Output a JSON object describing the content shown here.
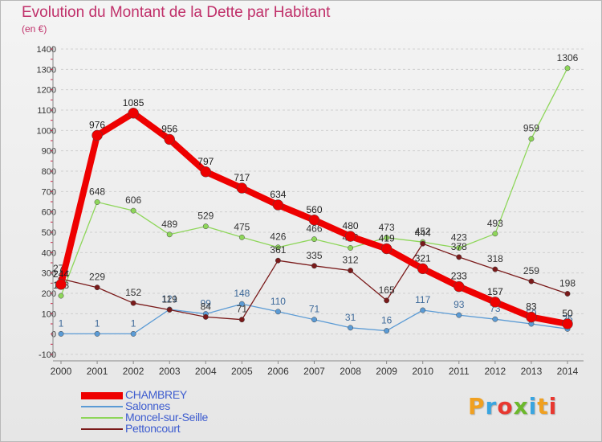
{
  "title": "Evolution du Montant de la Dette par Habitant",
  "unit_label": "(en €)",
  "brand": {
    "text": "Proxiti",
    "colors": [
      "#f0a020",
      "#3aa5e0",
      "#e83830",
      "#6cb82c",
      "#3aa5e0",
      "#f0a020",
      "#e83830"
    ]
  },
  "chart_data": {
    "type": "line",
    "title": "Evolution du Montant de la Dette par Habitant",
    "ylabel": "(en €)",
    "xlabel": "",
    "x": [
      2000,
      2001,
      2002,
      2003,
      2004,
      2005,
      2006,
      2007,
      2008,
      2009,
      2010,
      2011,
      2012,
      2013,
      2014
    ],
    "ylim": [
      -100,
      1400
    ],
    "yticks": [
      -100,
      0,
      100,
      200,
      300,
      400,
      500,
      600,
      700,
      800,
      900,
      1000,
      1100,
      1200,
      1300,
      1400
    ],
    "grid": "horizontal",
    "legend_position": "bottom-left",
    "series": [
      {
        "name": "Salonnes",
        "color": "#5b9bd5",
        "values": [
          1,
          1,
          1,
          121,
          99,
          148,
          110,
          71,
          31,
          16,
          117,
          93,
          73,
          50,
          25
        ]
      },
      {
        "name": "Moncel-sur-Seille",
        "color": "#8ed65a",
        "values": [
          188,
          648,
          606,
          489,
          529,
          475,
          426,
          466,
          423,
          473,
          452,
          423,
          493,
          959,
          1306
        ]
      },
      {
        "name": "Pettoncourt",
        "color": "#7a1a1a",
        "values": [
          271,
          229,
          152,
          119,
          84,
          71,
          361,
          335,
          312,
          165,
          444,
          378,
          318,
          259,
          198
        ]
      },
      {
        "name": "CHAMBREY",
        "color": "#ee0000",
        "values": [
          244,
          976,
          1085,
          956,
          797,
          717,
          634,
          560,
          480,
          419,
          321,
          233,
          157,
          83,
          50
        ]
      }
    ],
    "legend_order": [
      "CHAMBREY",
      "Salonnes",
      "Moncel-sur-Seille",
      "Pettoncourt"
    ]
  }
}
